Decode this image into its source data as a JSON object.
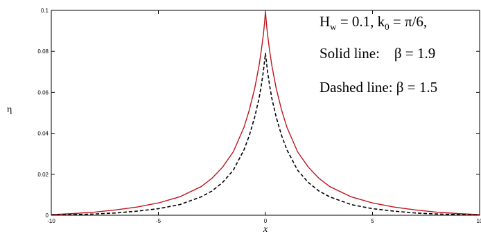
{
  "chart_data": {
    "type": "line",
    "title": "",
    "xlabel": "x",
    "ylabel": "η",
    "xlim": [
      -10,
      10
    ],
    "ylim": [
      0,
      0.1
    ],
    "x_ticks": [
      -10,
      -5,
      0,
      5,
      10
    ],
    "x_tick_labels": [
      "-10",
      "-5",
      "0",
      "5",
      "10"
    ],
    "y_ticks": [
      0,
      0.02,
      0.04,
      0.06,
      0.08,
      0.1
    ],
    "y_tick_labels": [
      "0",
      "0.02",
      "0.04",
      "0.06",
      "0.08",
      "0.1"
    ],
    "grid": false,
    "legend": "none",
    "annotation": {
      "line1": {
        "a": "H",
        "a_sub": "w",
        "b": " = 0.1, k",
        "b_sub": "0",
        "c": " = π/6,"
      },
      "line2": "Solid line:    β = 1.9",
      "line3": "Dashed line: β = 1.5"
    },
    "series": [
      {
        "style": "solid",
        "color": "#c0141c",
        "x": [
          -10,
          -9,
          -8,
          -7,
          -6,
          -5,
          -4,
          -3,
          -2.5,
          -2,
          -1.5,
          -1,
          -0.75,
          -0.5,
          -0.3,
          -0.2,
          -0.1,
          -0.05,
          0,
          0.05,
          0.1,
          0.2,
          0.3,
          0.5,
          0.75,
          1,
          1.5,
          2,
          2.5,
          3,
          4,
          5,
          6,
          7,
          8,
          9,
          10
        ],
        "y": [
          0.0003,
          0.0008,
          0.0015,
          0.0026,
          0.004,
          0.006,
          0.009,
          0.014,
          0.018,
          0.0235,
          0.031,
          0.043,
          0.0515,
          0.062,
          0.073,
          0.08,
          0.088,
          0.093,
          0.0995,
          0.093,
          0.088,
          0.08,
          0.073,
          0.062,
          0.0515,
          0.043,
          0.031,
          0.0235,
          0.018,
          0.014,
          0.009,
          0.006,
          0.004,
          0.0026,
          0.0015,
          0.0008,
          0.0003
        ]
      },
      {
        "style": "dashed",
        "color": "#000000",
        "x": [
          -10,
          -9,
          -8,
          -7,
          -6,
          -5,
          -4,
          -3,
          -2.5,
          -2,
          -1.5,
          -1,
          -0.75,
          -0.5,
          -0.3,
          -0.2,
          -0.1,
          -0.05,
          0,
          0.05,
          0.1,
          0.2,
          0.3,
          0.5,
          0.75,
          1,
          1.5,
          2,
          2.5,
          3,
          4,
          5,
          6,
          7,
          8,
          9,
          10
        ],
        "y": [
          0.0001,
          0.0003,
          0.0006,
          0.0011,
          0.002,
          0.0032,
          0.0052,
          0.009,
          0.0118,
          0.016,
          0.022,
          0.032,
          0.039,
          0.048,
          0.057,
          0.063,
          0.07,
          0.0745,
          0.079,
          0.0745,
          0.07,
          0.063,
          0.057,
          0.048,
          0.039,
          0.032,
          0.022,
          0.016,
          0.0118,
          0.009,
          0.0052,
          0.0032,
          0.002,
          0.0011,
          0.0006,
          0.0003,
          0.0001
        ]
      }
    ]
  }
}
